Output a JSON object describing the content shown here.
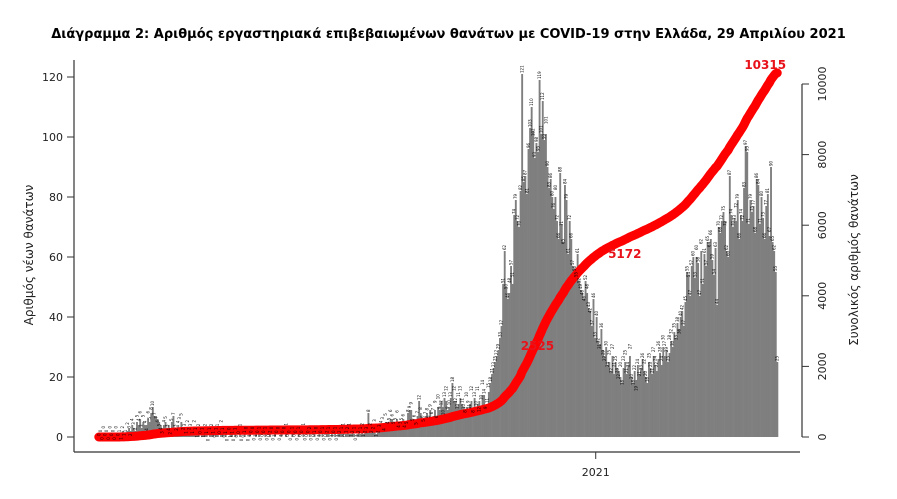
{
  "chart_data": {
    "type": "bar+line",
    "title": "Διάγραμμα 2: Αριθμός εργαστηριακά επιβεβαιωμένων θανάτων με COVID-19 στην Ελλάδα, 29 Απριλίου 2021",
    "ylabel": "Αριθμός νέων θανάτων",
    "y2label": "Συνολικός αριθμός θανάτων",
    "ylim": [
      0,
      120
    ],
    "y2lim": [
      0,
      10000
    ],
    "yticks": [
      0,
      20,
      40,
      60,
      80,
      100,
      120
    ],
    "y2ticks": [
      0,
      2000,
      4000,
      6000,
      8000,
      10000
    ],
    "start_date": "2020-02-22",
    "end_date": "2021-04-29",
    "xticks": [
      {
        "label": "2021",
        "date": "2021-01-01"
      }
    ],
    "bar_color": "#7f7f7f",
    "line_color": "#ff0000",
    "cumulative_final": 10315,
    "annotations": [
      2525,
      5172,
      10315
    ],
    "daily_deaths": [
      0,
      0,
      0,
      0,
      0,
      0,
      0,
      0,
      0,
      0,
      0,
      0,
      0,
      1,
      1,
      2,
      1,
      1,
      2,
      3,
      2,
      4,
      3,
      2,
      5,
      4,
      6,
      3,
      5,
      4,
      4,
      6,
      5,
      8,
      10,
      7,
      7,
      6,
      5,
      4,
      3,
      4,
      5,
      3,
      4,
      2,
      5,
      7,
      3,
      2,
      4,
      3,
      5,
      2,
      3,
      1,
      2,
      2,
      3,
      1,
      2,
      1,
      1,
      2,
      0,
      1,
      1,
      2,
      1,
      0,
      1,
      2,
      1,
      0,
      1,
      1,
      0,
      2,
      1,
      0,
      1,
      0,
      0,
      1,
      1,
      0,
      1,
      0,
      0,
      1,
      0,
      0,
      1,
      0,
      0,
      1,
      0,
      0,
      0,
      1,
      0,
      1,
      0,
      0,
      0,
      1,
      0,
      0,
      2,
      0,
      0,
      1,
      0,
      0,
      0,
      1,
      0,
      0,
      1,
      0,
      0,
      0,
      1,
      0,
      0,
      0,
      1,
      0,
      0,
      1,
      0,
      0,
      0,
      2,
      0,
      0,
      1,
      0,
      0,
      1,
      0,
      1,
      0,
      0,
      2,
      1,
      0,
      1,
      0,
      1,
      0,
      1,
      2,
      1,
      1,
      0,
      1,
      2,
      1,
      1,
      2,
      1,
      0,
      1,
      2,
      1,
      2,
      1,
      2,
      3,
      8,
      2,
      2,
      2,
      3,
      1,
      2,
      3,
      4,
      3,
      4,
      5,
      4,
      5,
      6,
      6,
      5,
      5,
      6,
      4,
      3,
      5,
      6,
      4,
      5,
      8,
      9,
      9,
      5,
      6,
      5,
      7,
      12,
      8,
      6,
      5,
      7,
      8,
      5,
      9,
      6,
      7,
      9,
      6,
      10,
      9,
      12,
      10,
      13,
      12,
      9,
      10,
      13,
      18,
      12,
      12,
      10,
      11,
      13,
      11,
      10,
      8,
      10,
      9,
      11,
      12,
      8,
      13,
      10,
      11,
      12,
      10,
      14,
      14,
      9,
      11,
      15,
      18,
      21,
      23,
      25,
      27,
      29,
      33,
      37,
      51,
      62,
      50,
      46,
      48,
      57,
      51,
      74,
      79,
      72,
      70,
      82,
      121,
      85,
      87,
      81,
      96,
      103,
      110,
      102,
      93,
      98,
      95,
      119,
      101,
      112,
      99,
      101,
      90,
      83,
      86,
      80,
      76,
      80,
      72,
      66,
      88,
      71,
      65,
      84,
      79,
      61,
      72,
      66,
      57,
      56,
      55,
      61,
      52,
      49,
      48,
      46,
      52,
      48,
      43,
      42,
      37,
      46,
      33,
      40,
      32,
      31,
      36,
      29,
      27,
      30,
      24,
      25,
      22,
      27,
      21,
      25,
      23,
      22,
      20,
      18,
      23,
      25,
      21,
      24,
      27,
      20,
      18,
      22,
      19,
      24,
      21,
      23,
      26,
      22,
      20,
      18,
      25,
      23,
      21,
      27,
      24,
      22,
      26,
      28,
      24,
      30,
      27,
      29,
      25,
      28,
      32,
      30,
      35,
      33,
      38,
      36,
      40,
      42,
      37,
      45,
      55,
      54,
      47,
      57,
      60,
      53,
      60,
      58,
      47,
      62,
      51,
      61,
      57,
      65,
      64,
      66,
      59,
      54,
      63,
      44,
      70,
      68,
      72,
      75,
      72,
      62,
      60,
      87,
      74,
      70,
      73,
      72,
      79,
      66,
      74,
      72,
      83,
      97,
      95,
      71,
      79,
      75,
      77,
      68,
      86,
      84,
      71,
      80,
      73,
      66,
      77,
      81,
      67,
      90,
      65,
      62,
      55,
      25
    ]
  }
}
